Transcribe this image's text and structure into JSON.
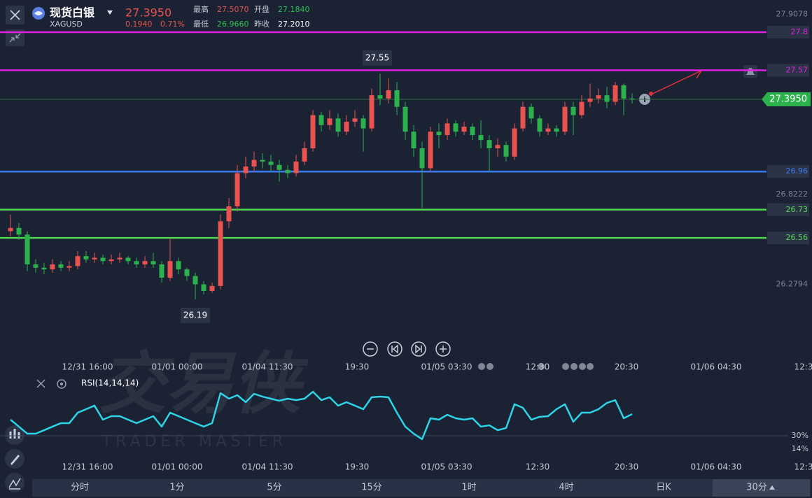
{
  "header": {
    "name": "现货白银",
    "symbol": "XAGUSD",
    "price": "27.3950",
    "change": "0.1940",
    "change_pct": "0.71%",
    "stats": [
      {
        "label": "最高",
        "value": "27.5070"
      },
      {
        "label": "开盘",
        "value": "27.1840"
      },
      {
        "label": "最低",
        "value": "26.9660"
      },
      {
        "label": "昨收",
        "value": "27.2010"
      }
    ]
  },
  "watermark": {
    "title": "交易侠",
    "subtitle": "TRADER MASTER"
  },
  "chart": {
    "type": "candlestick",
    "ylim": [
      25.97,
      27.994
    ],
    "yticks": [
      27.9078,
      26.8222,
      26.2794
    ],
    "levels": [
      {
        "value": 27.8,
        "color": "#e020e0"
      },
      {
        "value": 27.57,
        "color": "#e020e0"
      },
      {
        "value": 26.96,
        "color": "#3d7bf0"
      },
      {
        "value": 26.73,
        "color": "#4fd84f"
      },
      {
        "value": 26.56,
        "color": "#4fd84f"
      }
    ],
    "current": {
      "value": 27.395,
      "label": "27.3950"
    },
    "high_label": 27.55,
    "low_label": 26.19,
    "up_color": "#e8524f",
    "down_color": "#2bb24c",
    "candles": {
      "open": [
        26.6,
        26.62,
        26.58,
        26.4,
        26.38,
        26.37,
        26.4,
        26.38,
        26.39,
        26.45,
        26.43,
        26.44,
        26.42,
        26.43,
        26.44,
        26.42,
        26.4,
        26.42,
        26.4,
        26.32,
        26.42,
        26.37,
        26.33,
        26.28,
        26.24,
        26.27,
        26.66,
        26.75,
        26.95,
        26.99,
        27.03,
        27.02,
        27.0,
        26.97,
        26.95,
        27.02,
        27.1,
        27.3,
        27.24,
        27.28,
        27.2,
        27.26,
        27.28,
        27.22,
        27.42,
        27.4,
        27.45,
        27.35,
        27.2,
        27.1,
        26.98,
        27.2,
        27.18,
        27.25,
        27.2,
        27.23,
        27.18,
        27.15,
        27.1,
        27.12,
        27.05,
        27.22,
        27.35,
        27.28,
        27.2,
        27.22,
        27.2,
        27.35,
        27.3,
        27.38,
        27.4,
        27.42,
        27.38,
        27.48,
        27.4
      ],
      "high": [
        26.7,
        26.65,
        26.6,
        26.43,
        26.41,
        26.43,
        26.42,
        26.42,
        26.48,
        26.48,
        26.47,
        26.46,
        26.46,
        26.47,
        26.45,
        26.44,
        26.45,
        26.47,
        26.42,
        26.56,
        26.44,
        26.38,
        26.35,
        26.3,
        26.29,
        26.7,
        26.8,
        27.0,
        27.05,
        27.08,
        27.07,
        27.06,
        27.03,
        27.0,
        27.06,
        27.14,
        27.33,
        27.32,
        27.33,
        27.31,
        27.3,
        27.33,
        27.3,
        27.46,
        27.55,
        27.52,
        27.5,
        27.38,
        27.24,
        27.14,
        27.23,
        27.25,
        27.28,
        27.27,
        27.26,
        27.25,
        27.27,
        27.18,
        27.16,
        27.14,
        27.25,
        27.38,
        27.37,
        27.3,
        27.25,
        27.24,
        27.38,
        27.38,
        27.42,
        27.49,
        27.46,
        27.47,
        27.5,
        27.49,
        27.43
      ],
      "low": [
        26.57,
        26.55,
        26.36,
        26.35,
        26.34,
        26.35,
        26.36,
        26.36,
        26.37,
        26.41,
        26.41,
        26.4,
        26.4,
        26.41,
        26.4,
        26.38,
        26.38,
        26.38,
        26.29,
        26.3,
        26.34,
        26.3,
        26.19,
        26.22,
        26.23,
        26.25,
        26.62,
        26.72,
        26.92,
        26.96,
        26.98,
        26.96,
        26.9,
        26.92,
        26.93,
        27.0,
        27.08,
        27.2,
        27.21,
        27.17,
        27.18,
        27.23,
        27.08,
        27.2,
        27.36,
        27.37,
        27.3,
        27.15,
        27.05,
        26.74,
        26.96,
        27.1,
        27.15,
        27.17,
        27.18,
        27.15,
        27.1,
        26.96,
        27.05,
        27.02,
        27.03,
        27.2,
        27.25,
        27.17,
        27.18,
        27.17,
        27.18,
        27.18,
        27.28,
        27.35,
        27.37,
        27.34,
        27.36,
        27.3,
        27.37
      ],
      "close": [
        26.62,
        26.58,
        26.4,
        26.38,
        26.37,
        26.4,
        26.38,
        26.39,
        26.45,
        26.43,
        26.44,
        26.42,
        26.43,
        26.44,
        26.42,
        26.4,
        26.42,
        26.4,
        26.32,
        26.42,
        26.37,
        26.33,
        26.28,
        26.24,
        26.27,
        26.66,
        26.75,
        26.95,
        26.99,
        27.03,
        27.02,
        27.0,
        26.97,
        26.95,
        27.02,
        27.1,
        27.3,
        27.24,
        27.28,
        27.2,
        27.26,
        27.28,
        27.22,
        27.42,
        27.4,
        27.45,
        27.35,
        27.2,
        27.1,
        26.98,
        27.2,
        27.18,
        27.25,
        27.2,
        27.23,
        27.18,
        27.15,
        27.1,
        27.12,
        27.05,
        27.22,
        27.35,
        27.28,
        27.2,
        27.22,
        27.2,
        27.35,
        27.3,
        27.38,
        27.4,
        27.42,
        27.38,
        27.48,
        27.4,
        27.395
      ]
    },
    "time_labels": [
      "12/31 16:00",
      "01/01 00:00",
      "01/04 11:30",
      "19:30",
      "01/05 03:30",
      "12:30",
      "20:30",
      "01/06 04:30",
      "12:3"
    ]
  },
  "rsi": {
    "type": "line",
    "name": "RSI(14,14,14)",
    "color": "#2ed3e6",
    "ylim": [
      3,
      100
    ],
    "yticks": [
      {
        "value": 30,
        "label": "30%"
      },
      {
        "value": 14,
        "label": "14%"
      }
    ],
    "values": [
      49.4,
      41.0,
      32.5,
      32.5,
      36.7,
      41.0,
      45.2,
      45.2,
      57.8,
      62.0,
      66.3,
      49.4,
      53.6,
      53.6,
      49.4,
      45.2,
      49.4,
      53.6,
      41.0,
      57.8,
      53.6,
      49.4,
      45.2,
      41.0,
      45.2,
      81.4,
      74.7,
      78.9,
      70.5,
      80.6,
      77.2,
      74.7,
      72.2,
      74.7,
      73.0,
      74.7,
      83.1,
      73.0,
      76.4,
      66.3,
      70.5,
      66.3,
      62.0,
      76.4,
      77.2,
      76.4,
      57.8,
      41.0,
      32.5,
      25.8,
      51.1,
      49.4,
      55.3,
      51.1,
      49.4,
      51.1,
      41.0,
      42.6,
      36.7,
      39.3,
      68.0,
      63.7,
      49.4,
      52.8,
      53.6,
      62.0,
      68.0,
      46.9,
      57.8,
      57.8,
      62.0,
      69.6,
      73.0,
      51.1,
      56.1
    ]
  },
  "tabs": [
    "分时",
    "1分",
    "5分",
    "15分",
    "1时",
    "4时",
    "日K",
    "30分"
  ]
}
